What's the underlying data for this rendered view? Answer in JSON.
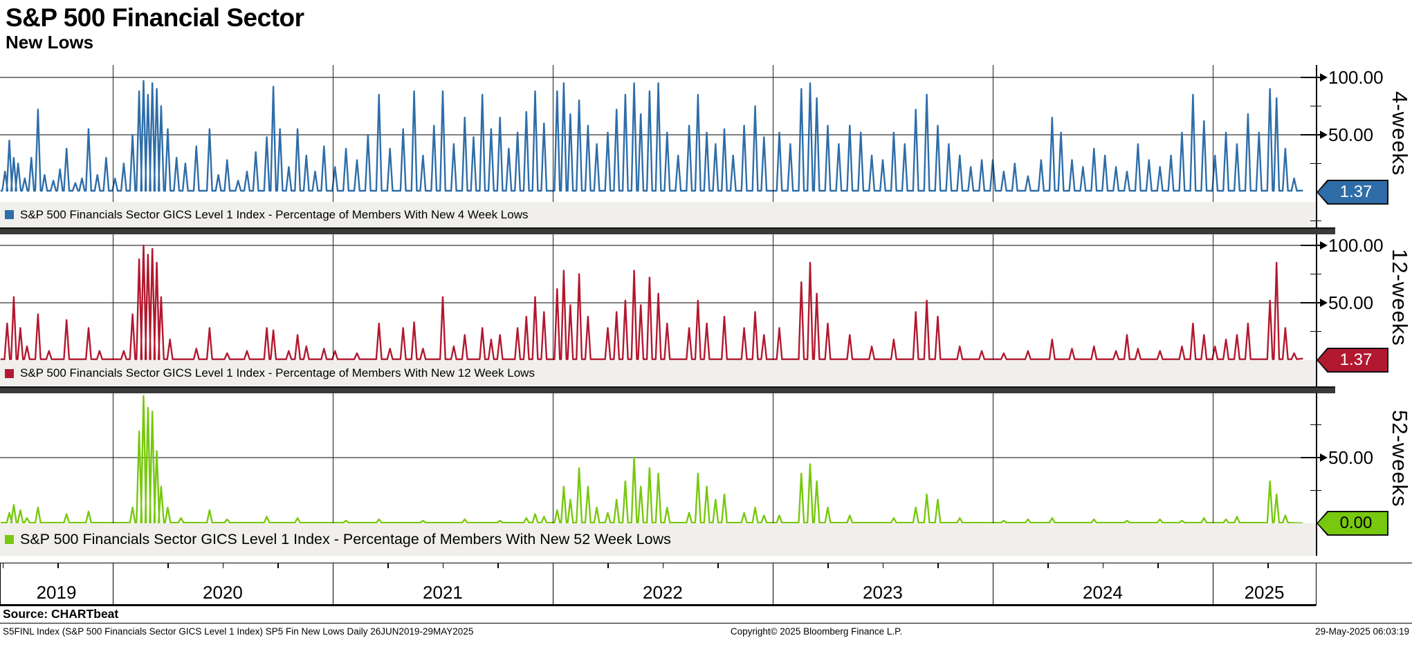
{
  "header": {
    "title": "S&P 500 Financial Sector",
    "subtitle": "New Lows"
  },
  "x_axis": {
    "years": [
      "2019",
      "2020",
      "2021",
      "2022",
      "2023",
      "2024",
      "2025"
    ]
  },
  "footer": {
    "source_label": "Source: CHARTbeat",
    "security_info": "S5FINL Index (S&P 500 Financials Sector GICS Level 1 Index) SP5 Fin New Lows  Daily 26JUN2019-29MAY2025",
    "copyright": "Copyright© 2025 Bloomberg Finance L.P.",
    "timestamp": "29-May-2025 06:03:19"
  },
  "chart_data": [
    {
      "type": "line",
      "name": "4-weeks",
      "legend": "S&P 500 Financials Sector GICS Level 1 Index - Percentage of Members With New 4 Week Lows",
      "color": "#2e6da8",
      "last_value": "1.37",
      "last_value_text_color": "#ffffff",
      "ylim": [
        0,
        110
      ],
      "y_ticks": {
        "major": [
          {
            "v": 100,
            "label": "100.00"
          },
          {
            "v": 50,
            "label": "50.00"
          }
        ],
        "minor": [
          75,
          25,
          -25
        ]
      },
      "baseline": 1.2,
      "spike_half_width_years": 0.012,
      "x_range": [
        2019.49,
        2025.41
      ],
      "end_point": [
        2025.41,
        1.37
      ],
      "spikes": [
        [
          2019.51,
          18
        ],
        [
          2019.53,
          45
        ],
        [
          2019.55,
          30
        ],
        [
          2019.57,
          25
        ],
        [
          2019.6,
          12
        ],
        [
          2019.63,
          30
        ],
        [
          2019.66,
          72
        ],
        [
          2019.69,
          15
        ],
        [
          2019.73,
          10
        ],
        [
          2019.76,
          20
        ],
        [
          2019.79,
          38
        ],
        [
          2019.83,
          8
        ],
        [
          2019.86,
          12
        ],
        [
          2019.89,
          55
        ],
        [
          2019.93,
          15
        ],
        [
          2019.97,
          30
        ],
        [
          2020.01,
          12
        ],
        [
          2020.05,
          25
        ],
        [
          2020.09,
          50
        ],
        [
          2020.12,
          88
        ],
        [
          2020.14,
          97
        ],
        [
          2020.16,
          85
        ],
        [
          2020.18,
          95
        ],
        [
          2020.2,
          90
        ],
        [
          2020.22,
          75
        ],
        [
          2020.25,
          55
        ],
        [
          2020.29,
          30
        ],
        [
          2020.33,
          25
        ],
        [
          2020.38,
          40
        ],
        [
          2020.44,
          55
        ],
        [
          2020.48,
          15
        ],
        [
          2020.52,
          28
        ],
        [
          2020.57,
          10
        ],
        [
          2020.61,
          18
        ],
        [
          2020.65,
          35
        ],
        [
          2020.7,
          48
        ],
        [
          2020.73,
          92
        ],
        [
          2020.76,
          55
        ],
        [
          2020.8,
          22
        ],
        [
          2020.84,
          55
        ],
        [
          2020.88,
          32
        ],
        [
          2020.92,
          18
        ],
        [
          2020.96,
          40
        ],
        [
          2021.01,
          22
        ],
        [
          2021.06,
          38
        ],
        [
          2021.11,
          28
        ],
        [
          2021.16,
          50
        ],
        [
          2021.21,
          85
        ],
        [
          2021.26,
          38
        ],
        [
          2021.32,
          55
        ],
        [
          2021.37,
          88
        ],
        [
          2021.41,
          32
        ],
        [
          2021.46,
          58
        ],
        [
          2021.5,
          88
        ],
        [
          2021.55,
          42
        ],
        [
          2021.6,
          65
        ],
        [
          2021.64,
          48
        ],
        [
          2021.68,
          85
        ],
        [
          2021.72,
          55
        ],
        [
          2021.76,
          65
        ],
        [
          2021.8,
          38
        ],
        [
          2021.84,
          52
        ],
        [
          2021.88,
          70
        ],
        [
          2021.92,
          88
        ],
        [
          2021.96,
          60
        ],
        [
          2022.02,
          88
        ],
        [
          2022.05,
          95
        ],
        [
          2022.08,
          68
        ],
        [
          2022.12,
          80
        ],
        [
          2022.16,
          58
        ],
        [
          2022.2,
          42
        ],
        [
          2022.25,
          52
        ],
        [
          2022.29,
          72
        ],
        [
          2022.33,
          85
        ],
        [
          2022.37,
          95
        ],
        [
          2022.4,
          68
        ],
        [
          2022.44,
          88
        ],
        [
          2022.48,
          95
        ],
        [
          2022.52,
          52
        ],
        [
          2022.57,
          32
        ],
        [
          2022.62,
          58
        ],
        [
          2022.66,
          85
        ],
        [
          2022.7,
          52
        ],
        [
          2022.74,
          42
        ],
        [
          2022.78,
          55
        ],
        [
          2022.82,
          32
        ],
        [
          2022.87,
          58
        ],
        [
          2022.92,
          75
        ],
        [
          2022.96,
          48
        ],
        [
          2023.03,
          52
        ],
        [
          2023.08,
          42
        ],
        [
          2023.13,
          90
        ],
        [
          2023.17,
          95
        ],
        [
          2023.2,
          82
        ],
        [
          2023.25,
          58
        ],
        [
          2023.3,
          42
        ],
        [
          2023.35,
          58
        ],
        [
          2023.4,
          52
        ],
        [
          2023.45,
          32
        ],
        [
          2023.5,
          28
        ],
        [
          2023.55,
          52
        ],
        [
          2023.6,
          42
        ],
        [
          2023.65,
          72
        ],
        [
          2023.7,
          85
        ],
        [
          2023.75,
          58
        ],
        [
          2023.8,
          42
        ],
        [
          2023.85,
          32
        ],
        [
          2023.9,
          22
        ],
        [
          2023.95,
          28
        ],
        [
          2024.0,
          28
        ],
        [
          2024.05,
          18
        ],
        [
          2024.1,
          25
        ],
        [
          2024.16,
          14
        ],
        [
          2024.22,
          28
        ],
        [
          2024.27,
          65
        ],
        [
          2024.31,
          52
        ],
        [
          2024.36,
          28
        ],
        [
          2024.41,
          22
        ],
        [
          2024.46,
          38
        ],
        [
          2024.51,
          32
        ],
        [
          2024.56,
          22
        ],
        [
          2024.61,
          18
        ],
        [
          2024.66,
          42
        ],
        [
          2024.71,
          28
        ],
        [
          2024.76,
          22
        ],
        [
          2024.81,
          32
        ],
        [
          2024.86,
          52
        ],
        [
          2024.91,
          85
        ],
        [
          2024.96,
          62
        ],
        [
          2025.01,
          32
        ],
        [
          2025.06,
          52
        ],
        [
          2025.11,
          42
        ],
        [
          2025.16,
          68
        ],
        [
          2025.21,
          52
        ],
        [
          2025.26,
          90
        ],
        [
          2025.29,
          82
        ],
        [
          2025.33,
          38
        ],
        [
          2025.37,
          12
        ]
      ]
    },
    {
      "type": "line",
      "name": "12-weeks",
      "legend": "S&P 500 Financials Sector GICS Level 1 Index - Percentage of Members With New 12 Week Lows",
      "color": "#b2182f",
      "last_value": "1.37",
      "last_value_text_color": "#ffffff",
      "ylim": [
        0,
        110
      ],
      "y_ticks": {
        "major": [
          {
            "v": 100,
            "label": "100.00"
          },
          {
            "v": 50,
            "label": "50.00"
          }
        ],
        "minor": [
          75,
          25
        ]
      },
      "baseline": 0.8,
      "spike_half_width_years": 0.012,
      "x_range": [
        2019.49,
        2025.41
      ],
      "end_point": [
        2025.41,
        1.37
      ],
      "spikes": [
        [
          2019.52,
          32
        ],
        [
          2019.55,
          55
        ],
        [
          2019.58,
          28
        ],
        [
          2019.61,
          12
        ],
        [
          2019.66,
          40
        ],
        [
          2019.71,
          8
        ],
        [
          2019.79,
          35
        ],
        [
          2019.89,
          28
        ],
        [
          2019.94,
          8
        ],
        [
          2020.05,
          8
        ],
        [
          2020.09,
          40
        ],
        [
          2020.12,
          88
        ],
        [
          2020.14,
          100
        ],
        [
          2020.16,
          92
        ],
        [
          2020.18,
          97
        ],
        [
          2020.2,
          85
        ],
        [
          2020.22,
          55
        ],
        [
          2020.26,
          18
        ],
        [
          2020.38,
          10
        ],
        [
          2020.44,
          28
        ],
        [
          2020.52,
          6
        ],
        [
          2020.61,
          8
        ],
        [
          2020.7,
          28
        ],
        [
          2020.73,
          26
        ],
        [
          2020.8,
          8
        ],
        [
          2020.84,
          22
        ],
        [
          2020.88,
          12
        ],
        [
          2020.96,
          10
        ],
        [
          2021.01,
          8
        ],
        [
          2021.11,
          6
        ],
        [
          2021.21,
          32
        ],
        [
          2021.26,
          10
        ],
        [
          2021.32,
          28
        ],
        [
          2021.37,
          33
        ],
        [
          2021.41,
          10
        ],
        [
          2021.5,
          55
        ],
        [
          2021.55,
          12
        ],
        [
          2021.6,
          22
        ],
        [
          2021.68,
          28
        ],
        [
          2021.72,
          18
        ],
        [
          2021.76,
          22
        ],
        [
          2021.84,
          28
        ],
        [
          2021.88,
          38
        ],
        [
          2021.92,
          55
        ],
        [
          2021.96,
          42
        ],
        [
          2022.02,
          62
        ],
        [
          2022.05,
          78
        ],
        [
          2022.08,
          48
        ],
        [
          2022.12,
          75
        ],
        [
          2022.16,
          38
        ],
        [
          2022.25,
          28
        ],
        [
          2022.29,
          42
        ],
        [
          2022.33,
          52
        ],
        [
          2022.37,
          78
        ],
        [
          2022.4,
          48
        ],
        [
          2022.44,
          72
        ],
        [
          2022.48,
          58
        ],
        [
          2022.52,
          32
        ],
        [
          2022.62,
          28
        ],
        [
          2022.66,
          52
        ],
        [
          2022.7,
          32
        ],
        [
          2022.78,
          38
        ],
        [
          2022.87,
          28
        ],
        [
          2022.92,
          42
        ],
        [
          2022.96,
          22
        ],
        [
          2023.03,
          28
        ],
        [
          2023.13,
          68
        ],
        [
          2023.17,
          85
        ],
        [
          2023.2,
          58
        ],
        [
          2023.25,
          32
        ],
        [
          2023.35,
          22
        ],
        [
          2023.45,
          12
        ],
        [
          2023.55,
          18
        ],
        [
          2023.65,
          42
        ],
        [
          2023.7,
          52
        ],
        [
          2023.75,
          38
        ],
        [
          2023.85,
          12
        ],
        [
          2023.95,
          8
        ],
        [
          2024.05,
          6
        ],
        [
          2024.16,
          8
        ],
        [
          2024.27,
          18
        ],
        [
          2024.36,
          10
        ],
        [
          2024.46,
          12
        ],
        [
          2024.56,
          8
        ],
        [
          2024.61,
          22
        ],
        [
          2024.66,
          10
        ],
        [
          2024.76,
          8
        ],
        [
          2024.86,
          12
        ],
        [
          2024.91,
          32
        ],
        [
          2024.96,
          22
        ],
        [
          2025.01,
          12
        ],
        [
          2025.06,
          18
        ],
        [
          2025.11,
          22
        ],
        [
          2025.16,
          32
        ],
        [
          2025.26,
          52
        ],
        [
          2025.29,
          85
        ],
        [
          2025.33,
          28
        ],
        [
          2025.37,
          6
        ]
      ]
    },
    {
      "type": "line",
      "name": "52-weeks",
      "legend": "S&P 500 Financials Sector GICS Level 1 Index - Percentage of Members With New 52 Week Lows",
      "color": "#77c80e",
      "last_value": "0.00",
      "last_value_text_color": "#000000",
      "ylim": [
        0,
        100
      ],
      "y_ticks": {
        "major": [
          {
            "v": 50,
            "label": "50.00"
          }
        ],
        "minor": [
          75,
          25
        ]
      },
      "baseline": 0.4,
      "spike_half_width_years": 0.012,
      "x_range": [
        2019.49,
        2025.41
      ],
      "end_point": [
        2025.41,
        0.0
      ],
      "spikes": [
        [
          2019.53,
          8
        ],
        [
          2019.55,
          14
        ],
        [
          2019.58,
          10
        ],
        [
          2019.61,
          4
        ],
        [
          2019.66,
          12
        ],
        [
          2019.79,
          7
        ],
        [
          2019.89,
          9
        ],
        [
          2020.09,
          12
        ],
        [
          2020.12,
          70
        ],
        [
          2020.14,
          97
        ],
        [
          2020.16,
          88
        ],
        [
          2020.18,
          85
        ],
        [
          2020.2,
          55
        ],
        [
          2020.22,
          28
        ],
        [
          2020.25,
          12
        ],
        [
          2020.31,
          4
        ],
        [
          2020.44,
          10
        ],
        [
          2020.52,
          3
        ],
        [
          2020.7,
          5
        ],
        [
          2020.84,
          4
        ],
        [
          2021.06,
          2
        ],
        [
          2021.21,
          3
        ],
        [
          2021.41,
          2
        ],
        [
          2021.6,
          3
        ],
        [
          2021.76,
          2
        ],
        [
          2021.88,
          4
        ],
        [
          2021.92,
          7
        ],
        [
          2021.96,
          5
        ],
        [
          2022.02,
          10
        ],
        [
          2022.05,
          28
        ],
        [
          2022.08,
          18
        ],
        [
          2022.12,
          42
        ],
        [
          2022.16,
          28
        ],
        [
          2022.2,
          12
        ],
        [
          2022.25,
          8
        ],
        [
          2022.29,
          18
        ],
        [
          2022.33,
          32
        ],
        [
          2022.37,
          50
        ],
        [
          2022.4,
          28
        ],
        [
          2022.44,
          42
        ],
        [
          2022.48,
          38
        ],
        [
          2022.52,
          12
        ],
        [
          2022.62,
          8
        ],
        [
          2022.66,
          38
        ],
        [
          2022.7,
          28
        ],
        [
          2022.74,
          18
        ],
        [
          2022.78,
          22
        ],
        [
          2022.87,
          8
        ],
        [
          2022.92,
          12
        ],
        [
          2022.96,
          6
        ],
        [
          2023.03,
          6
        ],
        [
          2023.13,
          38
        ],
        [
          2023.17,
          45
        ],
        [
          2023.2,
          32
        ],
        [
          2023.25,
          12
        ],
        [
          2023.35,
          6
        ],
        [
          2023.55,
          4
        ],
        [
          2023.65,
          12
        ],
        [
          2023.7,
          22
        ],
        [
          2023.75,
          18
        ],
        [
          2023.85,
          4
        ],
        [
          2024.05,
          2
        ],
        [
          2024.16,
          3
        ],
        [
          2024.27,
          4
        ],
        [
          2024.46,
          3
        ],
        [
          2024.61,
          2
        ],
        [
          2024.76,
          3
        ],
        [
          2024.86,
          2
        ],
        [
          2024.96,
          4
        ],
        [
          2025.06,
          3
        ],
        [
          2025.11,
          5
        ],
        [
          2025.26,
          32
        ],
        [
          2025.29,
          22
        ],
        [
          2025.33,
          6
        ]
      ]
    }
  ]
}
